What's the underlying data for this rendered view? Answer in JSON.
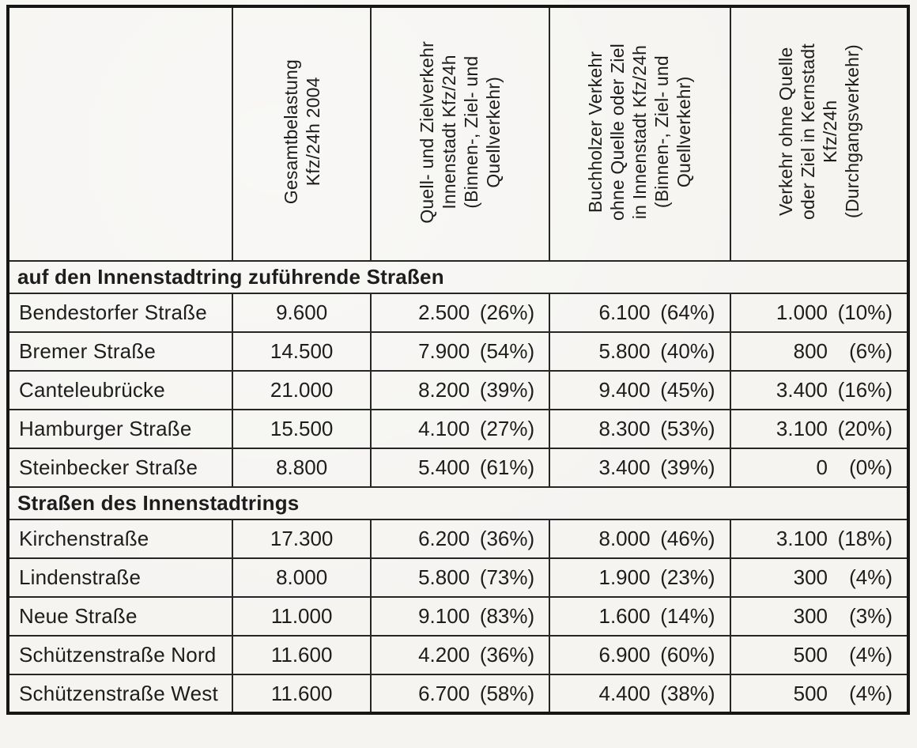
{
  "table": {
    "header": {
      "col_street": "",
      "col_total": "Gesamtbelastung\nKfz/24h 2004",
      "col_quell_ziel": "Quell- und Zielverkehr\nInnenstadt Kfz/24h\n(Binnen-, Ziel- und\nQuellverkehr)",
      "col_buchholzer": "Buchholzer Verkehr\nohne Quelle oder Ziel\nin Innenstadt Kfz/24h\n(Binnen-, Ziel- und\nQuellverkehr)",
      "col_durchgang": "Verkehr ohne Quelle\noder Ziel in Kernstadt\nKfz/24h\n(Durchgangsverkehr)"
    },
    "sections": [
      {
        "title": "auf den Innenstadtring zuführende Straßen",
        "rows": [
          {
            "name": "Bendestorfer Straße",
            "total": "9.600",
            "quell_ziel": "2.500",
            "quell_ziel_pct": "(26%)",
            "buchholzer": "6.100",
            "buchholzer_pct": "(64%)",
            "durchgang": "1.000",
            "durchgang_pct": "(10%)"
          },
          {
            "name": "Bremer Straße",
            "total": "14.500",
            "quell_ziel": "7.900",
            "quell_ziel_pct": "(54%)",
            "buchholzer": "5.800",
            "buchholzer_pct": "(40%)",
            "durchgang": "800",
            "durchgang_pct": "(6%)"
          },
          {
            "name": "Canteleubrücke",
            "total": "21.000",
            "quell_ziel": "8.200",
            "quell_ziel_pct": "(39%)",
            "buchholzer": "9.400",
            "buchholzer_pct": "(45%)",
            "durchgang": "3.400",
            "durchgang_pct": "(16%)"
          },
          {
            "name": "Hamburger Straße",
            "total": "15.500",
            "quell_ziel": "4.100",
            "quell_ziel_pct": "(27%)",
            "buchholzer": "8.300",
            "buchholzer_pct": "(53%)",
            "durchgang": "3.100",
            "durchgang_pct": "(20%)"
          },
          {
            "name": "Steinbecker Straße",
            "total": "8.800",
            "quell_ziel": "5.400",
            "quell_ziel_pct": "(61%)",
            "buchholzer": "3.400",
            "buchholzer_pct": "(39%)",
            "durchgang": "0",
            "durchgang_pct": "(0%)"
          }
        ]
      },
      {
        "title": "Straßen des Innenstadtrings",
        "rows": [
          {
            "name": "Kirchenstraße",
            "total": "17.300",
            "quell_ziel": "6.200",
            "quell_ziel_pct": "(36%)",
            "buchholzer": "8.000",
            "buchholzer_pct": "(46%)",
            "durchgang": "3.100",
            "durchgang_pct": "(18%)"
          },
          {
            "name": "Lindenstraße",
            "total": "8.000",
            "quell_ziel": "5.800",
            "quell_ziel_pct": "(73%)",
            "buchholzer": "1.900",
            "buchholzer_pct": "(23%)",
            "durchgang": "300",
            "durchgang_pct": "(4%)"
          },
          {
            "name": "Neue Straße",
            "total": "11.000",
            "quell_ziel": "9.100",
            "quell_ziel_pct": "(83%)",
            "buchholzer": "1.600",
            "buchholzer_pct": "(14%)",
            "durchgang": "300",
            "durchgang_pct": "(3%)"
          },
          {
            "name": "Schützenstraße Nord",
            "total": "11.600",
            "quell_ziel": "4.200",
            "quell_ziel_pct": "(36%)",
            "buchholzer": "6.900",
            "buchholzer_pct": "(60%)",
            "durchgang": "500",
            "durchgang_pct": "(4%)"
          },
          {
            "name": "Schützenstraße West",
            "total": "11.600",
            "quell_ziel": "6.700",
            "quell_ziel_pct": "(58%)",
            "buchholzer": "4.400",
            "buchholzer_pct": "(38%)",
            "durchgang": "500",
            "durchgang_pct": "(4%)"
          }
        ]
      }
    ]
  }
}
